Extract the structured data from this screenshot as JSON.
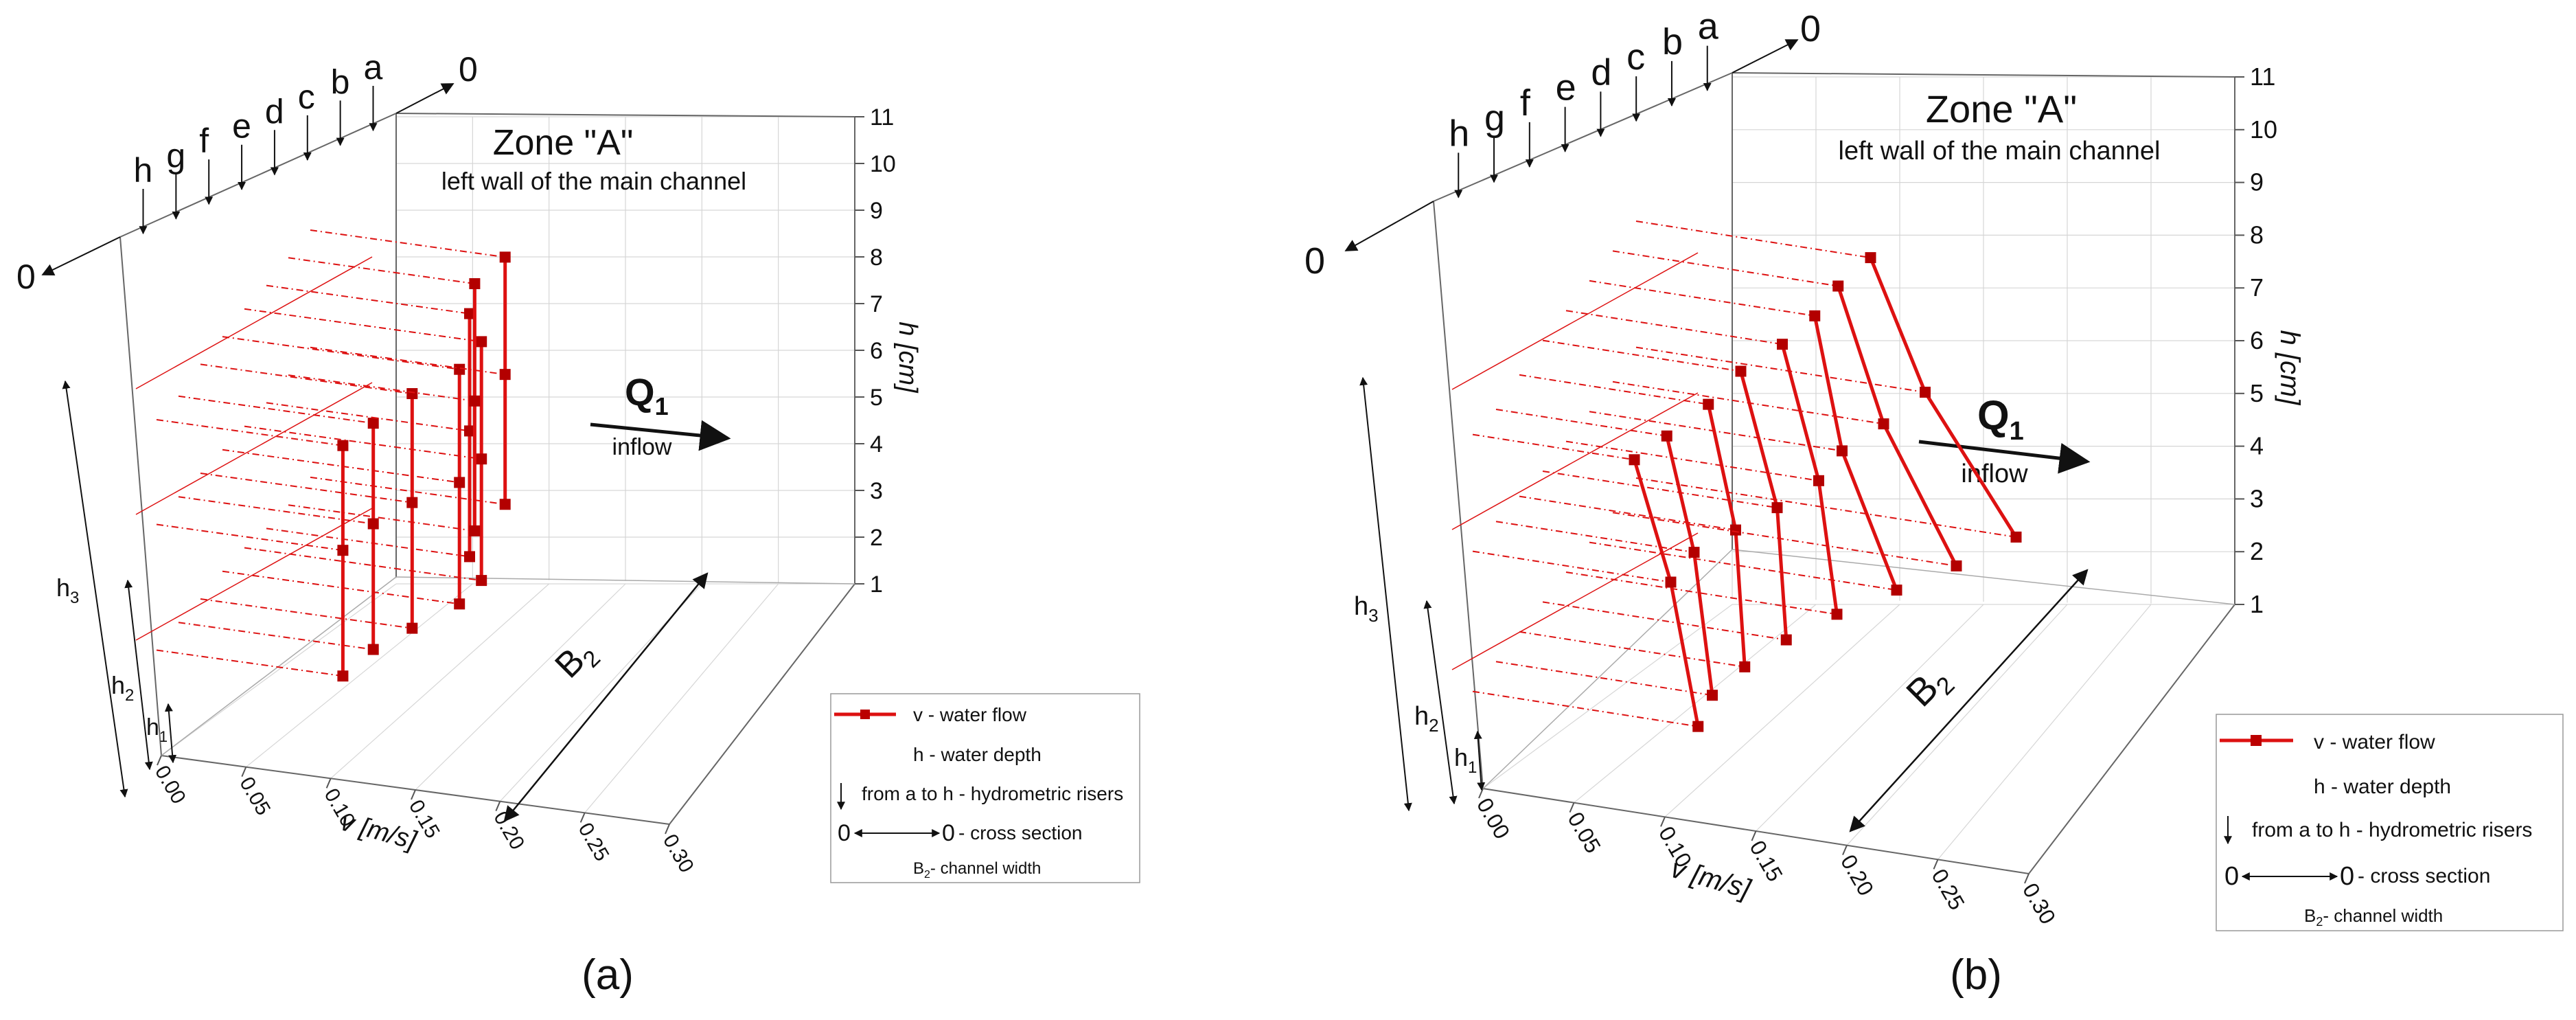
{
  "figure": {
    "panels": [
      {
        "id": "a",
        "panel_label": "(a)",
        "zone_title": "Zone \"A\"",
        "zone_subtitle": "left wall of the main channel",
        "riser_labels": [
          "h",
          "g",
          "f",
          "e",
          "d",
          "c",
          "b",
          "a"
        ],
        "zero_left": "0",
        "zero_right": "0",
        "q_label": "Q",
        "q_subscript": "1",
        "inflow_label": "inflow",
        "b_label": "B",
        "b_subscript": "2",
        "h_labels": [
          {
            "base": "h",
            "sub": "1"
          },
          {
            "base": "h",
            "sub": "2"
          },
          {
            "base": "h",
            "sub": "3"
          }
        ],
        "legend": {
          "flow": "v - water flow",
          "depth": "h - water depth",
          "risers": "from a to h - hydrometric risers",
          "zero_left": "0",
          "zero_right": "0",
          "cross_section": "- cross section",
          "width_base": "B",
          "width_sub": "2",
          "width_text": "- channel width"
        }
      },
      {
        "id": "b",
        "panel_label": "(b)",
        "zone_title": "Zone \"A\"",
        "zone_subtitle": "left wall of the main channel",
        "riser_labels": [
          "h",
          "g",
          "f",
          "e",
          "d",
          "c",
          "b",
          "a"
        ],
        "zero_left": "0",
        "zero_right": "0",
        "q_label": "Q",
        "q_subscript": "1",
        "inflow_label": "inflow",
        "b_label": "B",
        "b_subscript": "2",
        "h_labels": [
          {
            "base": "h",
            "sub": "1"
          },
          {
            "base": "h",
            "sub": "2"
          },
          {
            "base": "h",
            "sub": "3"
          }
        ],
        "legend": {
          "flow": "v - water flow",
          "depth": "h - water depth",
          "risers": "from a to h - hydrometric risers",
          "zero_left": "0",
          "zero_right": "0",
          "cross_section": "- cross section",
          "width_base": "B",
          "width_sub": "2",
          "width_text": "- channel width"
        }
      }
    ]
  },
  "chart_data": [
    {
      "type": "line",
      "panel": "a",
      "xlabel": "v [m/s]",
      "zlabel": "h [cm]",
      "xlim": [
        0.0,
        0.3
      ],
      "zlim": [
        1,
        11
      ],
      "x_ticks": [
        "0.00",
        "0.05",
        "0.10",
        "0.15",
        "0.20",
        "0.25",
        "0.30"
      ],
      "z_ticks": [
        "1",
        "2",
        "3",
        "4",
        "5",
        "6",
        "7",
        "8",
        "9",
        "10",
        "11"
      ],
      "colors": {
        "series": "#dd1111",
        "grid": "#d6d6d6",
        "axes": "#555555"
      },
      "series": [
        {
          "name": "h",
          "points": [
            [
              0.09,
              1.5
            ],
            [
              0.09,
              4.5
            ],
            [
              0.09,
              7.0
            ]
          ]
        },
        {
          "name": "g",
          "points": [
            [
              0.095,
              1.8
            ],
            [
              0.095,
              4.8
            ],
            [
              0.095,
              7.2
            ]
          ]
        },
        {
          "name": "f",
          "points": [
            [
              0.105,
              2.0
            ],
            [
              0.105,
              5.0
            ],
            [
              0.105,
              7.6
            ]
          ]
        },
        {
          "name": "e",
          "points": [
            [
              0.12,
              2.3
            ],
            [
              0.12,
              5.2
            ],
            [
              0.12,
              7.9
            ]
          ]
        },
        {
          "name": "d",
          "points": [
            [
              0.12,
              2.5
            ],
            [
              0.12,
              5.4
            ],
            [
              0.12,
              8.2
            ]
          ]
        },
        {
          "name": "c",
          "points": [
            [
              0.1,
              2.6
            ],
            [
              0.1,
              5.6
            ],
            [
              0.1,
              8.4
            ]
          ]
        },
        {
          "name": "b",
          "points": [
            [
              0.09,
              2.8
            ],
            [
              0.09,
              5.9
            ],
            [
              0.09,
              8.7
            ]
          ]
        },
        {
          "name": "a",
          "points": [
            [
              0.095,
              3.1
            ],
            [
              0.095,
              6.2
            ],
            [
              0.095,
              9.0
            ]
          ]
        }
      ]
    },
    {
      "type": "line",
      "panel": "b",
      "xlabel": "v [m/s]",
      "zlabel": "h [cm]",
      "xlim": [
        0.0,
        0.3
      ],
      "zlim": [
        1,
        11
      ],
      "x_ticks": [
        "0.00",
        "0.05",
        "0.10",
        "0.15",
        "0.20",
        "0.25",
        "0.30"
      ],
      "z_ticks": [
        "1",
        "2",
        "3",
        "4",
        "5",
        "6",
        "7",
        "8",
        "9",
        "10",
        "11"
      ],
      "colors": {
        "series": "#dd1111",
        "grid": "#d6d6d6",
        "axes": "#555555"
      },
      "series": [
        {
          "name": "h",
          "points": [
            [
              0.105,
              1.3
            ],
            [
              0.09,
              4.3
            ],
            [
              0.07,
              6.8
            ]
          ]
        },
        {
          "name": "g",
          "points": [
            [
              0.1,
              1.6
            ],
            [
              0.09,
              4.6
            ],
            [
              0.075,
              7.0
            ]
          ]
        },
        {
          "name": "f",
          "points": [
            [
              0.105,
              1.9
            ],
            [
              0.1,
              4.8
            ],
            [
              0.085,
              7.4
            ]
          ]
        },
        {
          "name": "e",
          "points": [
            [
              0.115,
              2.2
            ],
            [
              0.11,
              5.0
            ],
            [
              0.09,
              7.8
            ]
          ]
        },
        {
          "name": "d",
          "points": [
            [
              0.13,
              2.5
            ],
            [
              0.12,
              5.3
            ],
            [
              0.1,
              8.1
            ]
          ]
        },
        {
          "name": "c",
          "points": [
            [
              0.15,
              2.8
            ],
            [
              0.12,
              5.6
            ],
            [
              0.105,
              8.4
            ]
          ]
        },
        {
          "name": "b",
          "points": [
            [
              0.17,
              3.1
            ],
            [
              0.13,
              5.9
            ],
            [
              0.105,
              8.7
            ]
          ]
        },
        {
          "name": "a",
          "points": [
            [
              0.19,
              3.5
            ],
            [
              0.14,
              6.3
            ],
            [
              0.11,
              9.0
            ]
          ]
        }
      ]
    }
  ]
}
